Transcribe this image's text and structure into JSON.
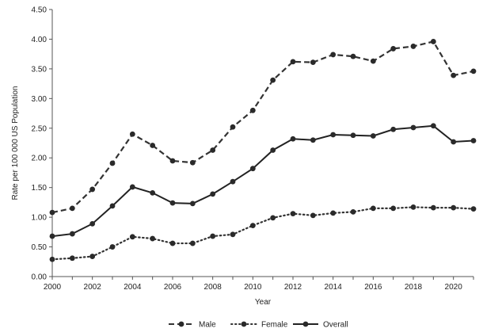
{
  "chart_data": {
    "type": "line",
    "title": "",
    "xlabel": "Year",
    "ylabel": "Rate per 100 000 US Population",
    "xlim": [
      2000,
      2021
    ],
    "ylim": [
      0,
      4.5
    ],
    "x_ticks": [
      "2000",
      "2002",
      "2004",
      "2006",
      "2008",
      "2010",
      "2012",
      "2014",
      "2016",
      "2018",
      "2020"
    ],
    "y_ticks": [
      "0.00",
      "0.50",
      "1.00",
      "1.50",
      "2.00",
      "2.50",
      "3.00",
      "3.50",
      "4.00",
      "4.50"
    ],
    "grid": false,
    "legend_position": "bottom",
    "x": [
      2000,
      2001,
      2002,
      2003,
      2004,
      2005,
      2006,
      2007,
      2008,
      2009,
      2010,
      2011,
      2012,
      2013,
      2014,
      2015,
      2016,
      2017,
      2018,
      2019,
      2020,
      2021
    ],
    "series": [
      {
        "name": "Male",
        "style": "dashed",
        "color": "#333333",
        "values": [
          1.08,
          1.15,
          1.47,
          1.91,
          2.4,
          2.21,
          1.95,
          1.92,
          2.13,
          2.52,
          2.8,
          3.31,
          3.62,
          3.61,
          3.74,
          3.71,
          3.63,
          3.84,
          3.88,
          3.96,
          3.39,
          3.46
        ]
      },
      {
        "name": "Female",
        "style": "dotted",
        "color": "#333333",
        "values": [
          0.29,
          0.31,
          0.34,
          0.5,
          0.67,
          0.64,
          0.56,
          0.56,
          0.68,
          0.71,
          0.86,
          0.99,
          1.06,
          1.03,
          1.07,
          1.09,
          1.15,
          1.15,
          1.17,
          1.16,
          1.16,
          1.14
        ]
      },
      {
        "name": "Overall",
        "style": "solid",
        "color": "#222222",
        "values": [
          0.68,
          0.72,
          0.89,
          1.19,
          1.51,
          1.41,
          1.24,
          1.23,
          1.39,
          1.6,
          1.82,
          2.13,
          2.32,
          2.3,
          2.39,
          2.38,
          2.37,
          2.48,
          2.51,
          2.54,
          2.27,
          2.29
        ]
      }
    ]
  }
}
